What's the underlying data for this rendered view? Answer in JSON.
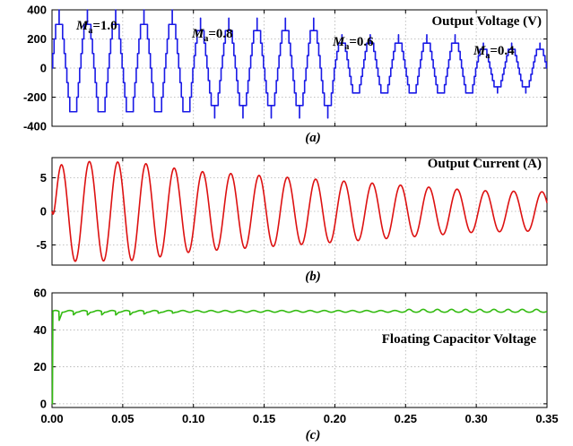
{
  "chart_data": [
    {
      "type": "line",
      "title": "Output Voltage (V)",
      "caption": "(a)",
      "xlim": [
        0,
        0.35
      ],
      "ylim": [
        -400,
        400
      ],
      "yticks": [
        400,
        200,
        0,
        -200,
        -400
      ],
      "grid": true,
      "color": "#1a1ae6",
      "waveform": "staircase",
      "frequency_hz": 50,
      "levels_per_half_cycle": 7,
      "segments": [
        {
          "x_range": [
            0,
            0.1
          ],
          "amplitude": 350,
          "annotation": {
            "italic": "M",
            "sub": "a",
            "text": "=1.0"
          }
        },
        {
          "x_range": [
            0.1,
            0.2
          ],
          "amplitude": 300,
          "annotation": {
            "italic": "M",
            "sub": "a",
            "text": "=0.8"
          }
        },
        {
          "x_range": [
            0.2,
            0.3
          ],
          "amplitude": 200,
          "annotation": {
            "italic": "M",
            "sub": "a",
            "text": "=0.6"
          }
        },
        {
          "x_range": [
            0.3,
            0.35
          ],
          "amplitude": 150,
          "annotation": {
            "italic": "M",
            "sub": "a",
            "text": "=0.4"
          }
        }
      ]
    },
    {
      "type": "line",
      "title": "Output Current (A)",
      "caption": "(b)",
      "xlim": [
        0,
        0.35
      ],
      "ylim": [
        -8,
        8
      ],
      "yticks": [
        5,
        0,
        -5
      ],
      "grid": true,
      "color": "#dd1111",
      "frequency_hz": 50,
      "phase_lag_rad": 0.45,
      "envelope": [
        {
          "x": 0.0,
          "amplitude": 7.5
        },
        {
          "x": 0.06,
          "amplitude": 7.3
        },
        {
          "x": 0.1,
          "amplitude": 6.0
        },
        {
          "x": 0.2,
          "amplitude": 4.6
        },
        {
          "x": 0.3,
          "amplitude": 3.1
        },
        {
          "x": 0.35,
          "amplitude": 2.9
        }
      ]
    },
    {
      "type": "line",
      "title": "Floating Capacitor Voltage",
      "caption": "(c)",
      "xlim": [
        0,
        0.35
      ],
      "ylim": [
        -2,
        60
      ],
      "yticks": [
        60,
        40,
        20,
        0
      ],
      "xticks": [
        "0.00",
        "0.05",
        "0.10",
        "0.15",
        "0.20",
        "0.25",
        "0.30",
        "0.35"
      ],
      "grid": true,
      "color": "#33bb11",
      "steady_value": 50,
      "initial_value": 0,
      "dips": [
        {
          "x": 0.005,
          "value": 45
        },
        {
          "x": 0.015,
          "value": 48
        },
        {
          "x": 0.025,
          "value": 48
        },
        {
          "x": 0.035,
          "value": 48
        },
        {
          "x": 0.045,
          "value": 48
        },
        {
          "x": 0.055,
          "value": 48
        },
        {
          "x": 0.065,
          "value": 48.5
        },
        {
          "x": 0.075,
          "value": 49
        },
        {
          "x": 0.085,
          "value": 49
        }
      ],
      "ripple_amplitude": 0.8
    }
  ]
}
